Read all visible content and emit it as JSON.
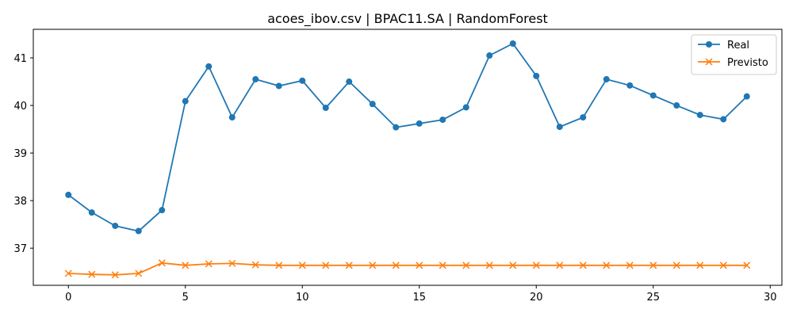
{
  "chart_data": {
    "type": "line",
    "title": "acoes_ibov.csv | BPAC11.SA | RandomForest",
    "xlabel": "",
    "ylabel": "",
    "xlim": [
      -1.5,
      30.5
    ],
    "ylim": [
      36.22,
      41.6
    ],
    "xticks": [
      0,
      5,
      10,
      15,
      20,
      25,
      30
    ],
    "yticks": [
      37,
      38,
      39,
      40,
      41
    ],
    "grid": false,
    "legend_position": "top-right",
    "x": [
      0,
      1,
      2,
      3,
      4,
      5,
      6,
      7,
      8,
      9,
      10,
      11,
      12,
      13,
      14,
      15,
      16,
      17,
      18,
      19,
      20,
      21,
      22,
      23,
      24,
      25,
      26,
      27,
      28,
      29
    ],
    "series": [
      {
        "name": "Real",
        "color": "#1f77b4",
        "marker": "circle",
        "values": [
          38.12,
          37.75,
          37.47,
          37.36,
          37.8,
          40.09,
          40.82,
          39.75,
          40.55,
          40.41,
          40.52,
          39.95,
          40.5,
          40.03,
          39.54,
          39.62,
          39.7,
          39.96,
          41.05,
          41.3,
          40.62,
          39.55,
          39.75,
          40.55,
          40.42,
          40.21,
          40.0,
          39.8,
          39.71,
          40.19
        ]
      },
      {
        "name": "Previsto",
        "color": "#ff7f0e",
        "marker": "x",
        "values": [
          36.47,
          36.45,
          36.44,
          36.47,
          36.69,
          36.64,
          36.67,
          36.68,
          36.65,
          36.64,
          36.64,
          36.64,
          36.64,
          36.64,
          36.64,
          36.64,
          36.64,
          36.64,
          36.64,
          36.64,
          36.64,
          36.64,
          36.64,
          36.64,
          36.64,
          36.64,
          36.64,
          36.64,
          36.64,
          36.64
        ]
      }
    ]
  }
}
